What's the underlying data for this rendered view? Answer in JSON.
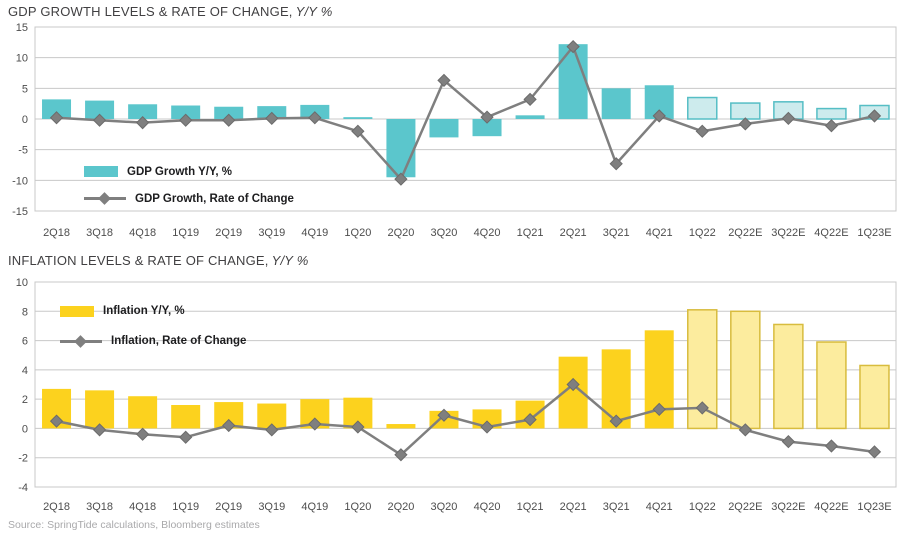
{
  "source_note": "Source: SpringTide calculations, Bloomberg estimates",
  "charts": {
    "gdp": {
      "title": "GDP GROWTH LEVELS & RATE OF CHANGE,",
      "title_suffix": "Y/Y %",
      "legend_bar": "GDP Growth Y/Y, %",
      "legend_line": "GDP Growth, Rate of Change"
    },
    "inflation": {
      "title": "INFLATION LEVELS & RATE OF CHANGE,",
      "title_suffix": "Y/Y %",
      "legend_bar": "Inflation Y/Y, %",
      "legend_line": "Inflation, Rate of Change"
    }
  },
  "chart_data": [
    {
      "id": "gdp",
      "type": "bar+line",
      "title": "GDP GROWTH LEVELS & RATE OF CHANGE, Y/Y %",
      "categories": [
        "2Q18",
        "3Q18",
        "4Q18",
        "1Q19",
        "2Q19",
        "3Q19",
        "4Q19",
        "1Q20",
        "2Q20",
        "3Q20",
        "4Q20",
        "1Q21",
        "2Q21",
        "3Q21",
        "4Q21",
        "1Q22",
        "2Q22E",
        "3Q22E",
        "4Q22E",
        "1Q23E"
      ],
      "series": [
        {
          "name": "GDP Growth Y/Y, %",
          "type": "bar",
          "values": [
            3.2,
            3.0,
            2.4,
            2.2,
            2.0,
            2.1,
            2.3,
            0.3,
            -9.5,
            -3.0,
            -2.8,
            0.6,
            12.2,
            5.0,
            5.5,
            3.5,
            2.6,
            2.8,
            1.7,
            2.2
          ]
        },
        {
          "name": "GDP Growth, Rate of Change",
          "type": "line",
          "values": [
            0.2,
            -0.2,
            -0.6,
            -0.2,
            -0.2,
            0.1,
            0.2,
            -2.0,
            -9.8,
            6.3,
            0.3,
            3.2,
            11.8,
            -7.3,
            0.5,
            -2.0,
            -0.8,
            0.1,
            -1.1,
            0.5
          ]
        }
      ],
      "ylim": [
        -15,
        15
      ],
      "yticks": [
        15,
        10,
        5,
        0,
        -5,
        -10,
        -15
      ],
      "estimate_from_index": 15,
      "legend_position": "inside-left-middle",
      "grid": true,
      "colors": {
        "bar": "#5BC6CC",
        "bar_estimate_fill": "#CDEBED",
        "bar_estimate_stroke": "#56BEC5",
        "line": "#7F7F7F",
        "marker_stroke": "#6B6B6B",
        "grid": "#C8C8C8",
        "axis_text": "#4D4D4D"
      }
    },
    {
      "id": "inflation",
      "type": "bar+line",
      "title": "INFLATION LEVELS & RATE OF CHANGE, Y/Y %",
      "categories": [
        "2Q18",
        "3Q18",
        "4Q18",
        "1Q19",
        "2Q19",
        "3Q19",
        "4Q19",
        "1Q20",
        "2Q20",
        "3Q20",
        "4Q20",
        "1Q21",
        "2Q21",
        "3Q21",
        "4Q21",
        "1Q22",
        "2Q22E",
        "3Q22E",
        "4Q22E",
        "1Q23E"
      ],
      "series": [
        {
          "name": "Inflation Y/Y, %",
          "type": "bar",
          "values": [
            2.7,
            2.6,
            2.2,
            1.6,
            1.8,
            1.7,
            2.0,
            2.1,
            0.3,
            1.2,
            1.3,
            1.9,
            4.9,
            5.4,
            6.7,
            8.1,
            8.0,
            7.1,
            5.9,
            4.3
          ]
        },
        {
          "name": "Inflation, Rate of Change",
          "type": "line",
          "values": [
            0.5,
            -0.1,
            -0.4,
            -0.6,
            0.2,
            -0.1,
            0.3,
            0.1,
            -1.8,
            0.9,
            0.1,
            0.6,
            3.0,
            0.5,
            1.3,
            1.4,
            -0.1,
            -0.9,
            -1.2,
            -1.6
          ]
        }
      ],
      "ylim": [
        -4,
        10
      ],
      "yticks": [
        10,
        8,
        6,
        4,
        2,
        0,
        -2,
        -4
      ],
      "estimate_from_index": 15,
      "legend_position": "inside-left-top",
      "grid": true,
      "colors": {
        "bar": "#FCD21E",
        "bar_estimate_fill": "#FCEC9E",
        "bar_estimate_stroke": "#D8BC3E",
        "line": "#7F7F7F",
        "marker_stroke": "#6B6B6B",
        "grid": "#C8C8C8",
        "axis_text": "#4D4D4D"
      }
    }
  ]
}
